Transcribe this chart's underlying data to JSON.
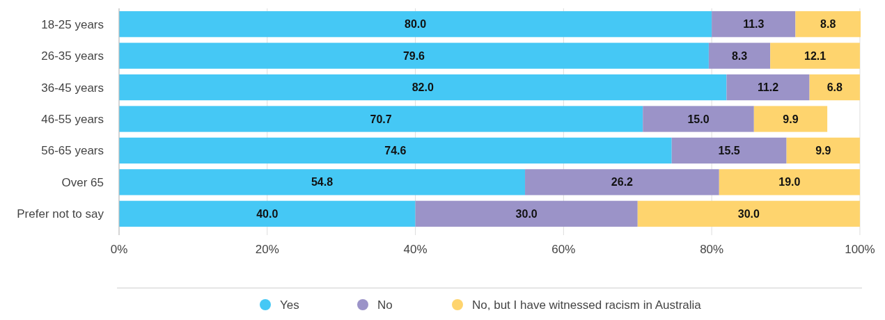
{
  "chart_data": {
    "type": "bar",
    "orientation": "horizontal",
    "stacked": true,
    "categories": [
      "18-25 years",
      "26-35 years",
      "36-45 years",
      "46-55 years",
      "56-65 years",
      "Over 65",
      "Prefer not to say"
    ],
    "series": [
      {
        "name": "Yes",
        "color": "#45c8f5",
        "values": [
          80.0,
          79.6,
          82.0,
          70.7,
          74.6,
          54.8,
          40.0
        ],
        "value_labels": [
          "80.0",
          "79.6",
          "82.0",
          "70.7",
          "74.6",
          "54.8",
          "40.0"
        ]
      },
      {
        "name": "No",
        "color": "#9b93c8",
        "values": [
          11.3,
          8.3,
          11.2,
          15.0,
          15.5,
          26.2,
          30.0
        ],
        "value_labels": [
          "11.3",
          "8.3",
          "11.2",
          "15.0",
          "15.5",
          "26.2",
          "30.0"
        ]
      },
      {
        "name": "No, but I have witnessed racism in Australia",
        "color": "#fed46e",
        "values": [
          8.8,
          12.1,
          6.8,
          9.9,
          9.9,
          19.0,
          30.0
        ],
        "value_labels": [
          "8.8",
          "12.1",
          "6.8",
          "9.9",
          "9.9",
          "19.0",
          "30.0"
        ]
      }
    ],
    "xlim": [
      0,
      100.1
    ],
    "xticks": [
      {
        "value": 0,
        "label": "0%"
      },
      {
        "value": 20,
        "label": "20%"
      },
      {
        "value": 40,
        "label": "40%"
      },
      {
        "value": 60,
        "label": "60%"
      },
      {
        "value": 80,
        "label": "80%"
      },
      {
        "value": 100,
        "label": "100%"
      }
    ],
    "grid": "x",
    "legend": "bottom"
  }
}
